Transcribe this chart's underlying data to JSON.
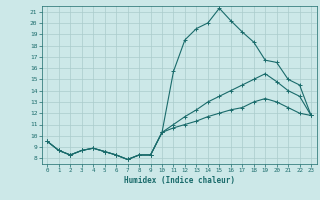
{
  "title": "",
  "xlabel": "Humidex (Indice chaleur)",
  "bg_color": "#cce8e8",
  "line_color": "#1a6b6b",
  "grid_color": "#aacccc",
  "xlim": [
    -0.5,
    23.5
  ],
  "ylim": [
    7.5,
    21.5
  ],
  "xticks": [
    0,
    1,
    2,
    3,
    4,
    5,
    6,
    7,
    8,
    9,
    10,
    11,
    12,
    13,
    14,
    15,
    16,
    17,
    18,
    19,
    20,
    21,
    22,
    23
  ],
  "yticks": [
    8,
    9,
    10,
    11,
    12,
    13,
    14,
    15,
    16,
    17,
    18,
    19,
    20,
    21
  ],
  "line1_x": [
    0,
    1,
    2,
    3,
    4,
    5,
    6,
    7,
    8,
    9,
    10,
    11,
    12,
    13,
    14,
    15,
    16,
    17,
    18,
    19,
    20,
    21,
    22,
    23
  ],
  "line1_y": [
    9.5,
    8.7,
    8.3,
    8.7,
    8.9,
    8.6,
    8.3,
    7.9,
    8.3,
    8.3,
    10.3,
    15.7,
    18.5,
    19.5,
    20.0,
    21.3,
    20.2,
    19.2,
    18.3,
    16.7,
    16.5,
    15.0,
    14.5,
    11.8
  ],
  "line2_x": [
    0,
    1,
    2,
    3,
    4,
    5,
    6,
    7,
    8,
    9,
    10,
    11,
    12,
    13,
    14,
    15,
    16,
    17,
    18,
    19,
    20,
    21,
    22,
    23
  ],
  "line2_y": [
    9.5,
    8.7,
    8.3,
    8.7,
    8.9,
    8.6,
    8.3,
    7.9,
    8.3,
    8.3,
    10.3,
    11.0,
    11.7,
    12.3,
    13.0,
    13.5,
    14.0,
    14.5,
    15.0,
    15.5,
    14.8,
    14.0,
    13.5,
    11.8
  ],
  "line3_x": [
    0,
    1,
    2,
    3,
    4,
    5,
    6,
    7,
    8,
    9,
    10,
    11,
    12,
    13,
    14,
    15,
    16,
    17,
    18,
    19,
    20,
    21,
    22,
    23
  ],
  "line3_y": [
    9.5,
    8.7,
    8.3,
    8.7,
    8.9,
    8.6,
    8.3,
    7.9,
    8.3,
    8.3,
    10.3,
    10.7,
    11.0,
    11.3,
    11.7,
    12.0,
    12.3,
    12.5,
    13.0,
    13.3,
    13.0,
    12.5,
    12.0,
    11.8
  ]
}
